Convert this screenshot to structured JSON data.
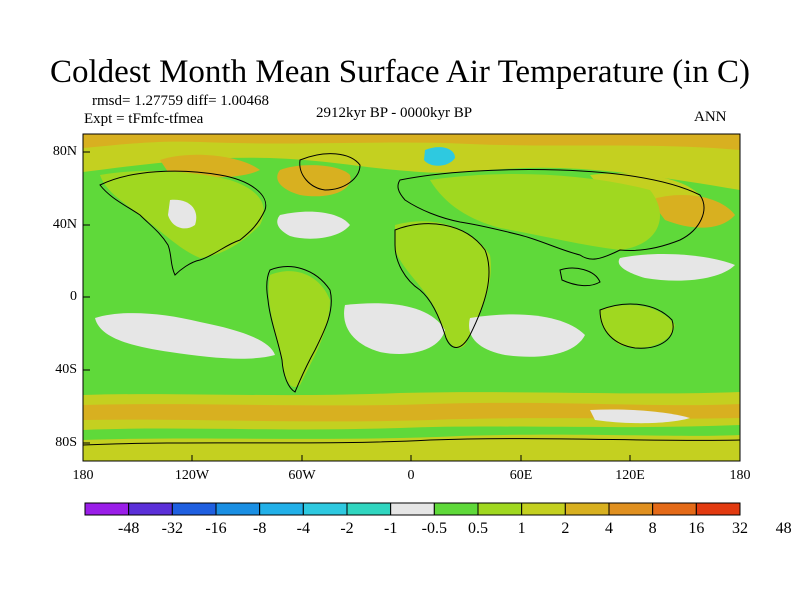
{
  "title": "Coldest Month Mean Surface Air Temperature (in C)",
  "stats_text": "rmsd= 1.27759 diff= 1.00468",
  "expt_text": "Expt = tFmfc-tfmea",
  "period_text": "2912kyr BP - 0000kyr BP",
  "season_text": "ANN",
  "map": {
    "lat_labels": [
      "80N",
      "40N",
      "0",
      "40S",
      "80S"
    ],
    "lon_labels": [
      "180",
      "120W",
      "60W",
      "0",
      "60E",
      "120E",
      "180"
    ],
    "lat_range": [
      -90,
      90
    ],
    "lon_range": [
      -180,
      180
    ]
  },
  "colorbar": {
    "levels": [
      "-48",
      "-32",
      "-16",
      "-8",
      "-4",
      "-2",
      "-1",
      "-0.5",
      "0.5",
      "1",
      "2",
      "4",
      "8",
      "16",
      "32",
      "48"
    ],
    "colors": [
      "#9a1ee8",
      "#5b2fd8",
      "#1f5fe0",
      "#1a8fe3",
      "#22b0e8",
      "#2ec9e0",
      "#30d6c0",
      "#e6e6e6",
      "#5fd93a",
      "#a0d820",
      "#c4d020",
      "#d8b020",
      "#e09020",
      "#e46a18",
      "#e23a10"
    ]
  },
  "palette": {
    "ocean_green": "#5fd93a",
    "land_light": "#a0d820",
    "warm_yellow": "#c4d020",
    "warm_orange": "#d8b020",
    "white_band": "#e6e6e6",
    "cold_cyan": "#2ec9e0"
  }
}
